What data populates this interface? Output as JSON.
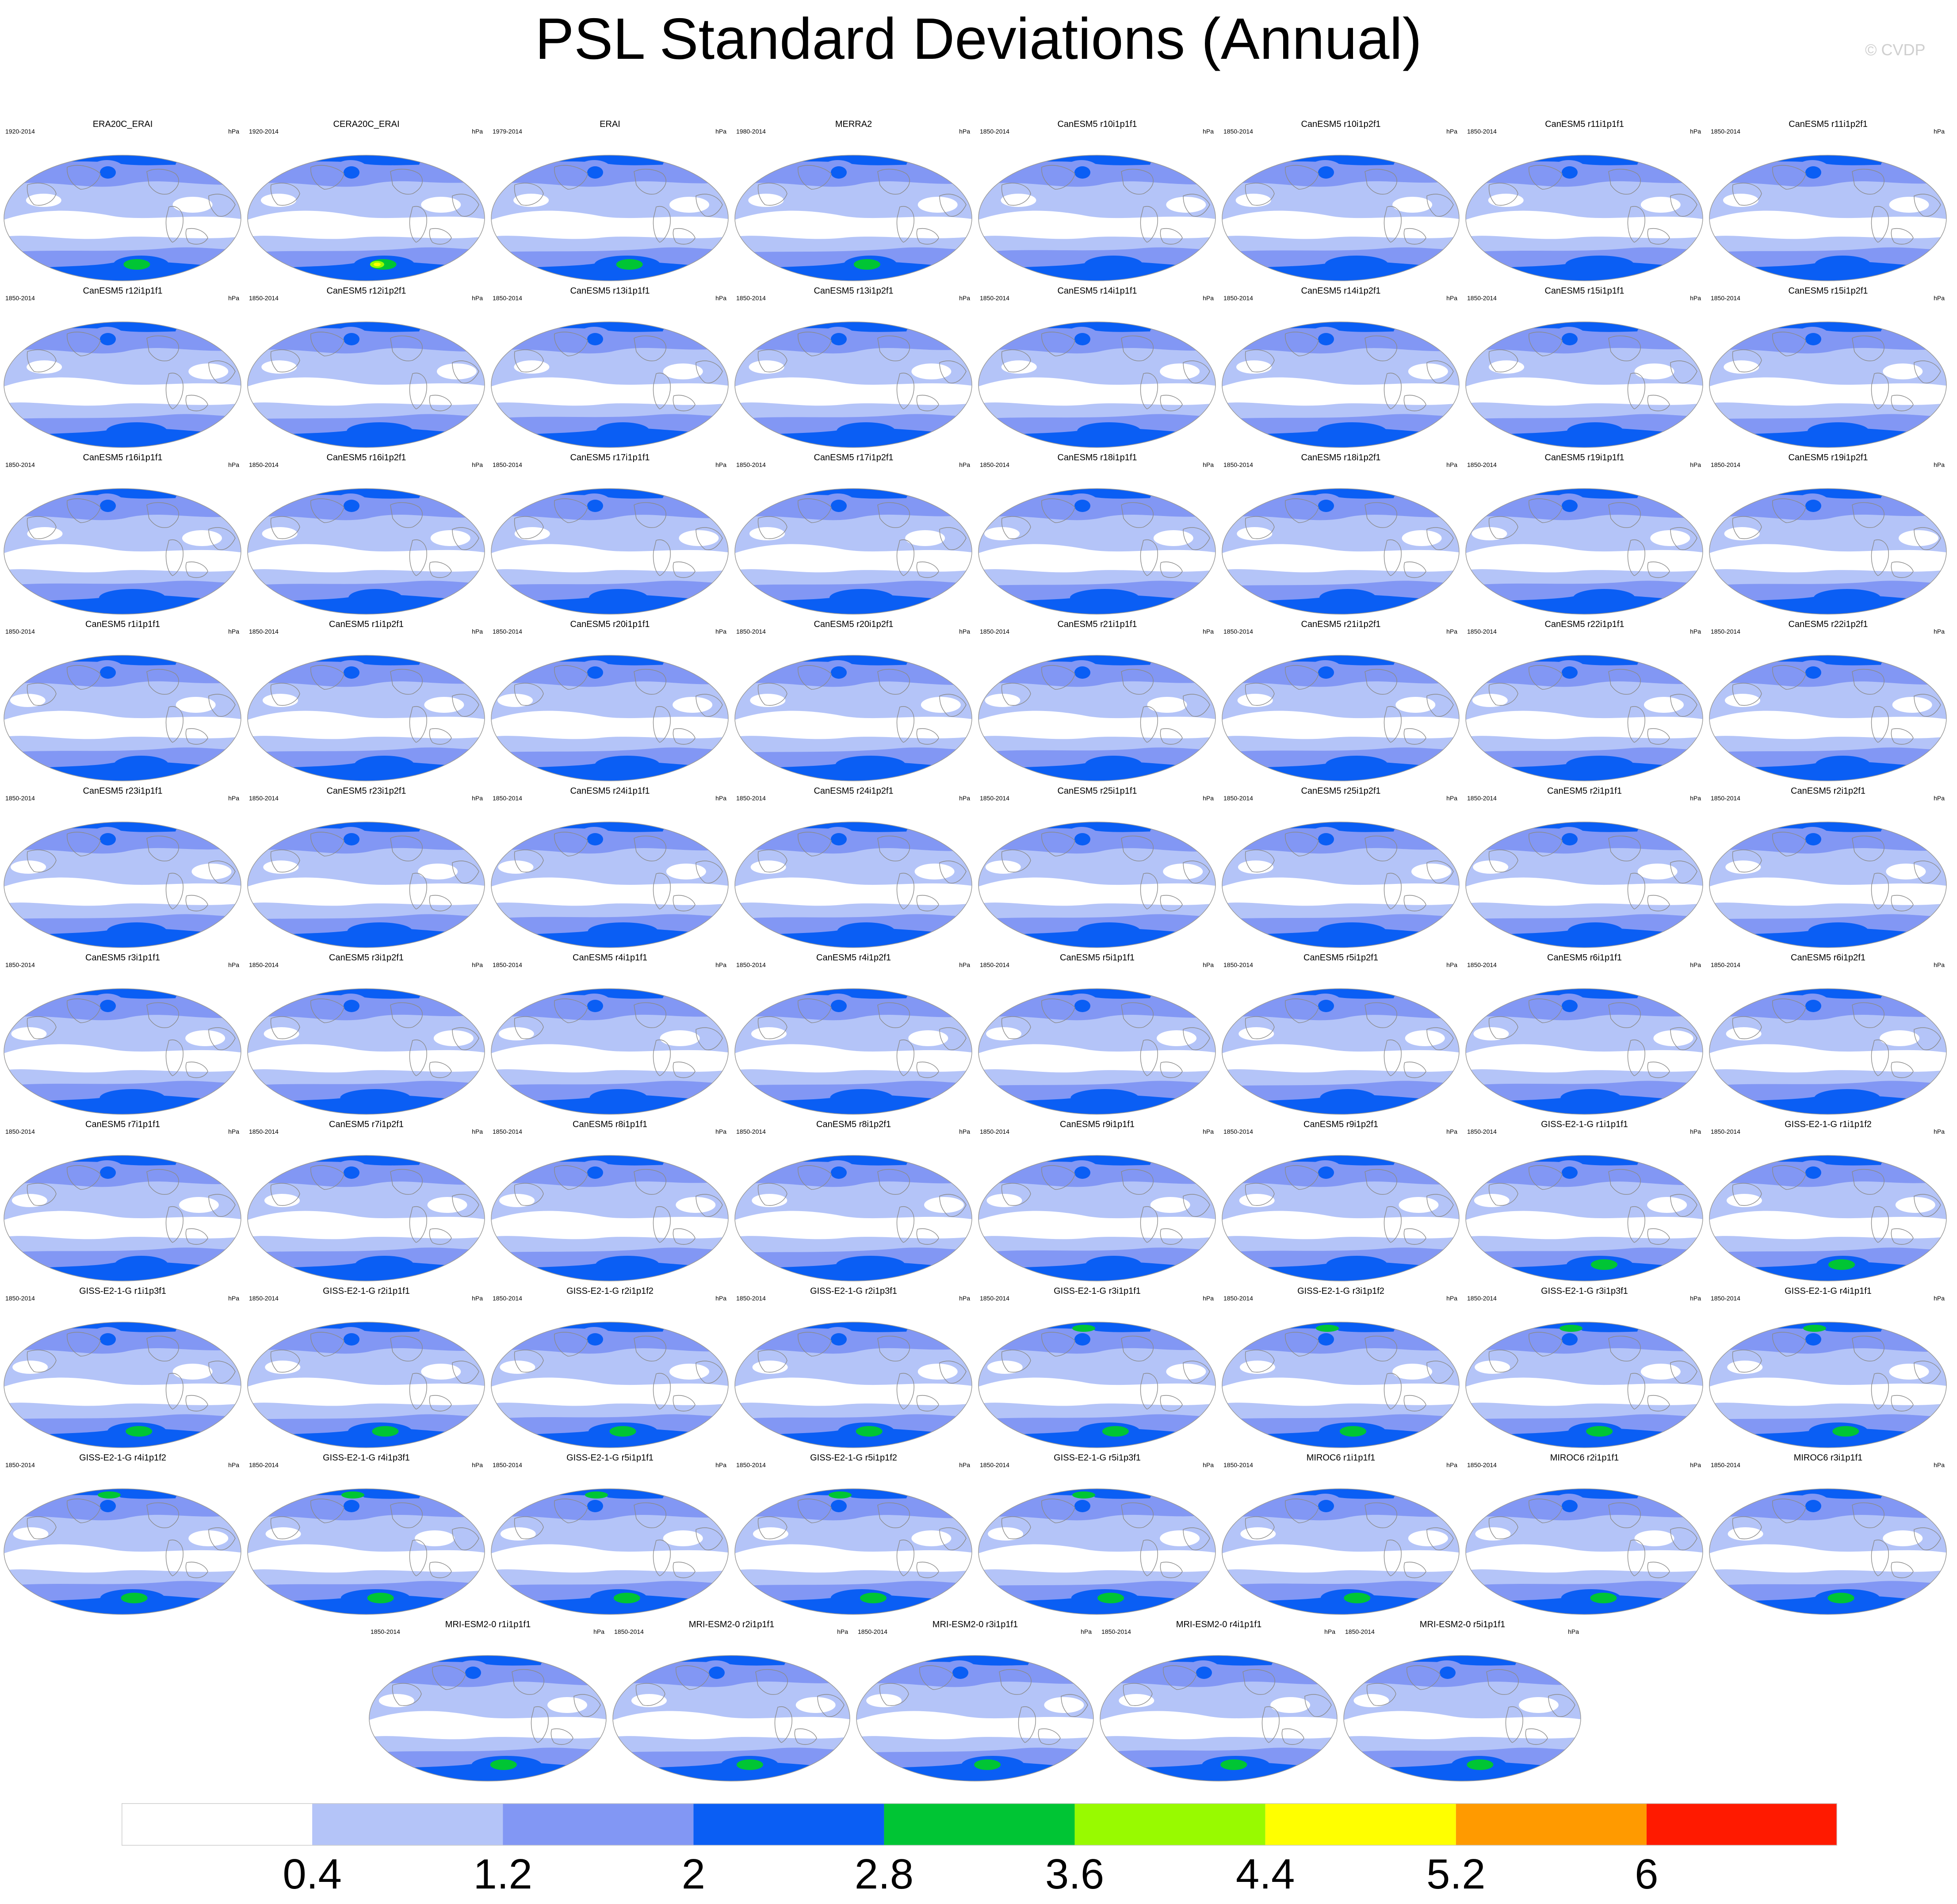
{
  "title": "PSL Standard Deviations (Annual)",
  "watermark": "© CVDP",
  "units": "hPa",
  "colors": {
    "levels": [
      "#ffffff",
      "#b4c4f8",
      "#8297f4",
      "#0a5ef4",
      "#00c534",
      "#98fa00",
      "#ffff00",
      "#ff9a00",
      "#ff1a00"
    ],
    "coast": "#8a8a8a",
    "frame": "#9a9a9a"
  },
  "colorbar": {
    "ticks": [
      "0.4",
      "1.2",
      "2",
      "2.8",
      "3.6",
      "4.4",
      "5.2",
      "6"
    ]
  },
  "chart_data": {
    "type": "heatmap",
    "title": "PSL Standard Deviations (Annual)",
    "units": "hPa",
    "levels": [
      0.4,
      1.2,
      2,
      2.8,
      3.6,
      4.4,
      5.2,
      6
    ],
    "panels": [
      {
        "title": "ERA20C_ERAI",
        "years": "1920-2014"
      },
      {
        "title": "CERA20C_ERAI",
        "years": "1920-2014"
      },
      {
        "title": "ERAI",
        "years": "1979-2014"
      },
      {
        "title": "MERRA2",
        "years": "1980-2014"
      },
      {
        "title": "CanESM5 r10i1p1f1",
        "years": "1850-2014"
      },
      {
        "title": "CanESM5 r10i1p2f1",
        "years": "1850-2014"
      },
      {
        "title": "CanESM5 r11i1p1f1",
        "years": "1850-2014"
      },
      {
        "title": "CanESM5 r11i1p2f1",
        "years": "1850-2014"
      },
      {
        "title": "CanESM5 r12i1p1f1",
        "years": "1850-2014"
      },
      {
        "title": "CanESM5 r12i1p2f1",
        "years": "1850-2014"
      },
      {
        "title": "CanESM5 r13i1p1f1",
        "years": "1850-2014"
      },
      {
        "title": "CanESM5 r13i1p2f1",
        "years": "1850-2014"
      },
      {
        "title": "CanESM5 r14i1p1f1",
        "years": "1850-2014"
      },
      {
        "title": "CanESM5 r14i1p2f1",
        "years": "1850-2014"
      },
      {
        "title": "CanESM5 r15i1p1f1",
        "years": "1850-2014"
      },
      {
        "title": "CanESM5 r15i1p2f1",
        "years": "1850-2014"
      },
      {
        "title": "CanESM5 r16i1p1f1",
        "years": "1850-2014"
      },
      {
        "title": "CanESM5 r16i1p2f1",
        "years": "1850-2014"
      },
      {
        "title": "CanESM5 r17i1p1f1",
        "years": "1850-2014"
      },
      {
        "title": "CanESM5 r17i1p2f1",
        "years": "1850-2014"
      },
      {
        "title": "CanESM5 r18i1p1f1",
        "years": "1850-2014"
      },
      {
        "title": "CanESM5 r18i1p2f1",
        "years": "1850-2014"
      },
      {
        "title": "CanESM5 r19i1p1f1",
        "years": "1850-2014"
      },
      {
        "title": "CanESM5 r19i1p2f1",
        "years": "1850-2014"
      },
      {
        "title": "CanESM5 r1i1p1f1",
        "years": "1850-2014"
      },
      {
        "title": "CanESM5 r1i1p2f1",
        "years": "1850-2014"
      },
      {
        "title": "CanESM5 r20i1p1f1",
        "years": "1850-2014"
      },
      {
        "title": "CanESM5 r20i1p2f1",
        "years": "1850-2014"
      },
      {
        "title": "CanESM5 r21i1p1f1",
        "years": "1850-2014"
      },
      {
        "title": "CanESM5 r21i1p2f1",
        "years": "1850-2014"
      },
      {
        "title": "CanESM5 r22i1p1f1",
        "years": "1850-2014"
      },
      {
        "title": "CanESM5 r22i1p2f1",
        "years": "1850-2014"
      },
      {
        "title": "CanESM5 r23i1p1f1",
        "years": "1850-2014"
      },
      {
        "title": "CanESM5 r23i1p2f1",
        "years": "1850-2014"
      },
      {
        "title": "CanESM5 r24i1p1f1",
        "years": "1850-2014"
      },
      {
        "title": "CanESM5 r24i1p2f1",
        "years": "1850-2014"
      },
      {
        "title": "CanESM5 r25i1p1f1",
        "years": "1850-2014"
      },
      {
        "title": "CanESM5 r25i1p2f1",
        "years": "1850-2014"
      },
      {
        "title": "CanESM5 r2i1p1f1",
        "years": "1850-2014"
      },
      {
        "title": "CanESM5 r2i1p2f1",
        "years": "1850-2014"
      },
      {
        "title": "CanESM5 r3i1p1f1",
        "years": "1850-2014"
      },
      {
        "title": "CanESM5 r3i1p2f1",
        "years": "1850-2014"
      },
      {
        "title": "CanESM5 r4i1p1f1",
        "years": "1850-2014"
      },
      {
        "title": "CanESM5 r4i1p2f1",
        "years": "1850-2014"
      },
      {
        "title": "CanESM5 r5i1p1f1",
        "years": "1850-2014"
      },
      {
        "title": "CanESM5 r5i1p2f1",
        "years": "1850-2014"
      },
      {
        "title": "CanESM5 r6i1p1f1",
        "years": "1850-2014"
      },
      {
        "title": "CanESM5 r6i1p2f1",
        "years": "1850-2014"
      },
      {
        "title": "CanESM5 r7i1p1f1",
        "years": "1850-2014"
      },
      {
        "title": "CanESM5 r7i1p2f1",
        "years": "1850-2014"
      },
      {
        "title": "CanESM5 r8i1p1f1",
        "years": "1850-2014"
      },
      {
        "title": "CanESM5 r8i1p2f1",
        "years": "1850-2014"
      },
      {
        "title": "CanESM5 r9i1p1f1",
        "years": "1850-2014"
      },
      {
        "title": "CanESM5 r9i1p2f1",
        "years": "1850-2014"
      },
      {
        "title": "GISS-E2-1-G r1i1p1f1",
        "years": "1850-2014"
      },
      {
        "title": "GISS-E2-1-G r1i1p1f2",
        "years": "1850-2014"
      },
      {
        "title": "GISS-E2-1-G r1i1p3f1",
        "years": "1850-2014"
      },
      {
        "title": "GISS-E2-1-G r2i1p1f1",
        "years": "1850-2014"
      },
      {
        "title": "GISS-E2-1-G r2i1p1f2",
        "years": "1850-2014"
      },
      {
        "title": "GISS-E2-1-G r2i1p3f1",
        "years": "1850-2014"
      },
      {
        "title": "GISS-E2-1-G r3i1p1f1",
        "years": "1850-2014"
      },
      {
        "title": "GISS-E2-1-G r3i1p1f2",
        "years": "1850-2014"
      },
      {
        "title": "GISS-E2-1-G r3i1p3f1",
        "years": "1850-2014"
      },
      {
        "title": "GISS-E2-1-G r4i1p1f1",
        "years": "1850-2014"
      },
      {
        "title": "GISS-E2-1-G r4i1p1f2",
        "years": "1850-2014"
      },
      {
        "title": "GISS-E2-1-G r4i1p3f1",
        "years": "1850-2014"
      },
      {
        "title": "GISS-E2-1-G r5i1p1f1",
        "years": "1850-2014"
      },
      {
        "title": "GISS-E2-1-G r5i1p1f2",
        "years": "1850-2014"
      },
      {
        "title": "GISS-E2-1-G r5i1p3f1",
        "years": "1850-2014"
      },
      {
        "title": "MIROC6 r1i1p1f1",
        "years": "1850-2014"
      },
      {
        "title": "MIROC6 r2i1p1f1",
        "years": "1850-2014"
      },
      {
        "title": "MIROC6 r3i1p1f1",
        "years": "1850-2014"
      },
      {
        "title": "MRI-ESM2-0 r1i1p1f1",
        "years": "1850-2014"
      },
      {
        "title": "MRI-ESM2-0 r2i1p1f1",
        "years": "1850-2014"
      },
      {
        "title": "MRI-ESM2-0 r3i1p1f1",
        "years": "1850-2014"
      },
      {
        "title": "MRI-ESM2-0 r4i1p1f1",
        "years": "1850-2014"
      },
      {
        "title": "MRI-ESM2-0 r5i1p1f1",
        "years": "1850-2014"
      }
    ]
  }
}
